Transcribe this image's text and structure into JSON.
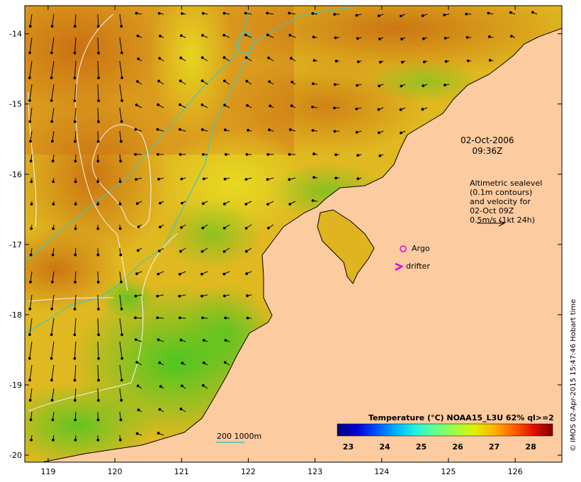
{
  "axes": {
    "x_ticks": [
      "119",
      "120",
      "121",
      "122",
      "123",
      "124",
      "125",
      "126"
    ],
    "y_ticks": [
      "-14",
      "-15",
      "-16",
      "-17",
      "-18",
      "-19",
      "-20"
    ],
    "lon_range": [
      118.65,
      126.7
    ],
    "lat_range": [
      -20.1,
      -13.6
    ]
  },
  "annotation": {
    "date_line1": "02-Oct-2006",
    "date_line2": "09:36Z",
    "alt_lines": [
      "Altimetric sealevel",
      "(0.1m contours)",
      "and velocity for",
      "02-Oct 09Z",
      "0.5m/s (1kt 24h)"
    ]
  },
  "legend": {
    "argo_label": "Argo",
    "drifter_label": "drifter",
    "depth_label": "200  1000m",
    "argo_color": "#e000e0",
    "drifter_color": "#e000e0",
    "depth_color": "#40c8c0"
  },
  "colorbar": {
    "title": "Temperature (°C) NOAA15_L3U 62% ql>=2",
    "labels": [
      "23",
      "24",
      "25",
      "26",
      "27",
      "28"
    ],
    "range": [
      22.7,
      28.6
    ],
    "colors": [
      "#00007f",
      "#0000d0",
      "#0050ff",
      "#00b0ff",
      "#20f0e0",
      "#60ff90",
      "#a0ff40",
      "#e0f000",
      "#ffb000",
      "#ff6000",
      "#e01000",
      "#7f0000"
    ]
  },
  "credit": "© IMOS 02-Apr-2015 15:47:46 Hobart time",
  "colors": {
    "land": "#fccba0",
    "coast": "#000000",
    "contour": "#ffffff"
  }
}
